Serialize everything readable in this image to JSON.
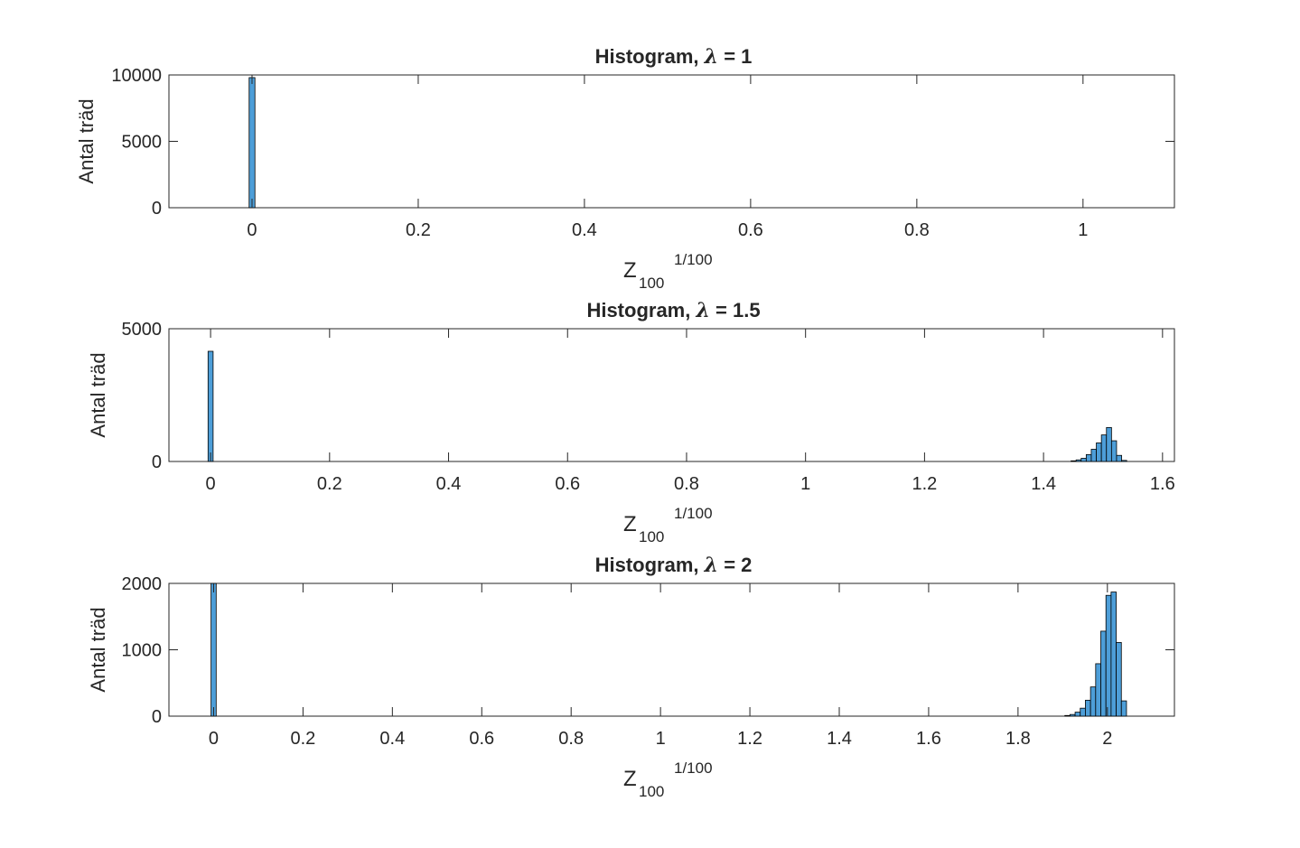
{
  "chart_data": [
    {
      "type": "bar",
      "title": "Histogram, λ = 1",
      "title_prefix": "Histogram,",
      "title_symbol": "λ",
      "title_suffix": "= 1",
      "ylabel": "Antal träd",
      "xlabel_base": "Z",
      "xlabel_sub": "100",
      "xlabel_sup": "1/100",
      "xlim": [
        -0.1,
        1.11
      ],
      "ylim": [
        0,
        10000
      ],
      "xticks": [
        0,
        0.2,
        0.4,
        0.6,
        0.8,
        1
      ],
      "xtick_labels": [
        "0",
        "0.2",
        "0.4",
        "0.6",
        "0.8",
        "1"
      ],
      "yticks": [
        0,
        5000,
        10000
      ],
      "ytick_labels": [
        "0",
        "5000",
        "10000"
      ],
      "bin_width": 0.007,
      "bins": [
        {
          "x": 0.0,
          "count": 9800
        }
      ],
      "color": "#4d9ed8"
    },
    {
      "type": "bar",
      "title": "Histogram, λ = 1.5",
      "title_prefix": "Histogram,",
      "title_symbol": "λ",
      "title_suffix": "= 1.5",
      "ylabel": "Antal träd",
      "xlabel_base": "Z",
      "xlabel_sub": "100",
      "xlabel_sup": "1/100",
      "xlim": [
        -0.07,
        1.62
      ],
      "ylim": [
        0,
        5000
      ],
      "xticks": [
        0,
        0.2,
        0.4,
        0.6,
        0.8,
        1,
        1.2,
        1.4,
        1.6
      ],
      "xtick_labels": [
        "0",
        "0.2",
        "0.4",
        "0.6",
        "0.8",
        "1",
        "1.2",
        "1.4",
        "1.6"
      ],
      "yticks": [
        0,
        5000
      ],
      "ytick_labels": [
        "0",
        "5000"
      ],
      "bin_width": 0.0085,
      "bins": [
        {
          "x": 0.0,
          "count": 4150
        },
        {
          "x": 1.4505,
          "count": 25
        },
        {
          "x": 1.459,
          "count": 60
        },
        {
          "x": 1.4675,
          "count": 120
        },
        {
          "x": 1.476,
          "count": 260
        },
        {
          "x": 1.4845,
          "count": 460
        },
        {
          "x": 1.493,
          "count": 700
        },
        {
          "x": 1.5015,
          "count": 1000
        },
        {
          "x": 1.51,
          "count": 1280
        },
        {
          "x": 1.5185,
          "count": 780
        },
        {
          "x": 1.527,
          "count": 230
        },
        {
          "x": 1.5355,
          "count": 40
        }
      ],
      "color": "#4d9ed8"
    },
    {
      "type": "bar",
      "title": "Histogram, λ = 2",
      "title_prefix": "Histogram,",
      "title_symbol": "λ",
      "title_suffix": "= 2",
      "ylabel": "Antal träd",
      "xlabel_base": "Z",
      "xlabel_sub": "100",
      "xlabel_sup": "1/100",
      "xlim": [
        -0.1,
        2.15
      ],
      "ylim": [
        0,
        2000
      ],
      "xticks": [
        0,
        0.2,
        0.4,
        0.6,
        0.8,
        1,
        1.2,
        1.4,
        1.6,
        1.8,
        2
      ],
      "xtick_labels": [
        "0",
        "0.2",
        "0.4",
        "0.6",
        "0.8",
        "1",
        "1.2",
        "1.4",
        "1.6",
        "1.8",
        "2"
      ],
      "yticks": [
        0,
        1000,
        2000
      ],
      "ytick_labels": [
        "0",
        "1000",
        "2000"
      ],
      "bin_width": 0.0115,
      "bins": [
        {
          "x": 0.0,
          "count": 2000
        },
        {
          "x": 1.9105,
          "count": 10
        },
        {
          "x": 1.922,
          "count": 25
        },
        {
          "x": 1.9335,
          "count": 60
        },
        {
          "x": 1.945,
          "count": 120
        },
        {
          "x": 1.9565,
          "count": 240
        },
        {
          "x": 1.968,
          "count": 440
        },
        {
          "x": 1.9795,
          "count": 790
        },
        {
          "x": 1.991,
          "count": 1280
        },
        {
          "x": 2.0025,
          "count": 1820
        },
        {
          "x": 2.014,
          "count": 1870
        },
        {
          "x": 2.0255,
          "count": 1110
        },
        {
          "x": 2.037,
          "count": 230
        }
      ],
      "color": "#4d9ed8"
    }
  ]
}
